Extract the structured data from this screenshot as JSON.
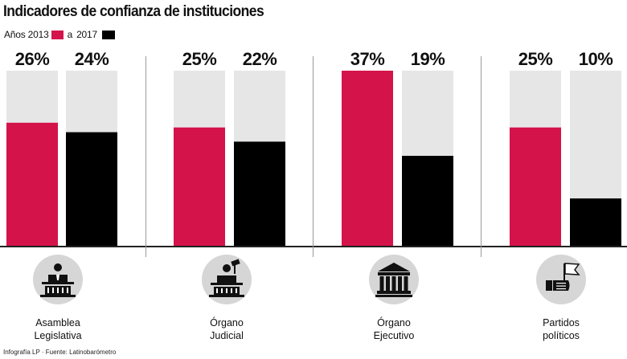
{
  "title": "Indicadores de confianza de instituciones",
  "legend": {
    "prefix": "Años 2013",
    "connector": "a",
    "suffix": "2017"
  },
  "colors": {
    "y2013": "#d4134a",
    "y2017": "#000000",
    "background_bar": "#e6e6e7",
    "icon_circle": "#d6d6d6"
  },
  "footer": "Infografía LP · Fuente: Latinobarómetro",
  "chart_data": {
    "type": "bar",
    "title": "Indicadores de confianza de instituciones",
    "categories": [
      "Asamblea Legislativa",
      "Órgano Judicial",
      "Órgano Ejecutivo",
      "Partidos políticos"
    ],
    "category_lines": [
      [
        "Asamblea",
        "Legislativa"
      ],
      [
        "Órgano",
        "Judicial"
      ],
      [
        "Órgano",
        "Ejecutivo"
      ],
      [
        "Partidos",
        "políticos"
      ]
    ],
    "series": [
      {
        "name": "2013",
        "values": [
          26,
          25,
          37,
          25
        ]
      },
      {
        "name": "2017",
        "values": [
          24,
          22,
          19,
          10
        ]
      }
    ],
    "value_labels": [
      [
        "26%",
        "24%"
      ],
      [
        "25%",
        "22%"
      ],
      [
        "37%",
        "19%"
      ],
      [
        "25%",
        "10%"
      ]
    ],
    "icons": [
      "legislature-icon",
      "judge-gavel-icon",
      "government-building-icon",
      "party-flag-icon"
    ],
    "ylim": [
      0,
      37
    ],
    "legend_position": "top-left",
    "grid": false
  }
}
